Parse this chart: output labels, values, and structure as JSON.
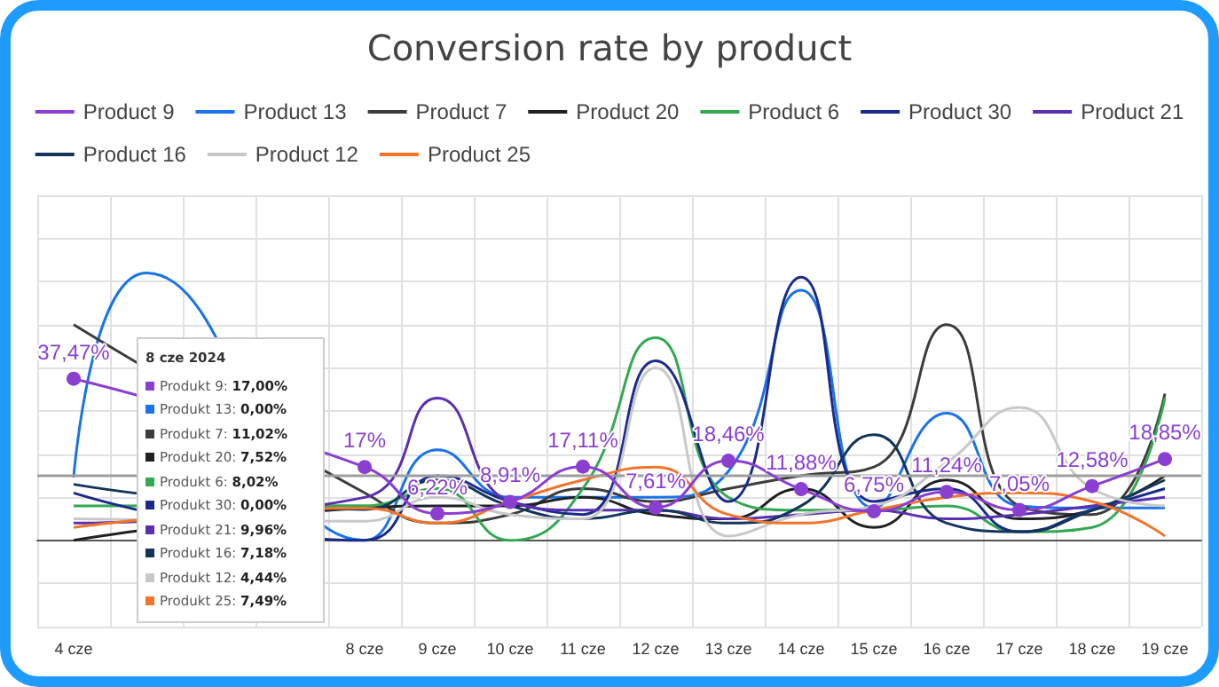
{
  "chart_data": {
    "type": "line",
    "title": "Conversion rate by product",
    "categories": [
      "4 cze",
      null,
      null,
      null,
      "8 cze",
      "9 cze",
      "10 cze",
      "11 cze",
      "12 cze",
      "13 cze",
      "14 cze",
      "15 cze",
      "16 cze",
      "17 cze",
      "18 cze",
      "19 cze"
    ],
    "series": [
      {
        "name": "Product 9",
        "color": "#8a3fd1",
        "marker": "circle",
        "values": [
          37.47,
          null,
          null,
          null,
          17,
          6.22,
          8.91,
          17.11,
          7.61,
          18.46,
          11.88,
          6.75,
          11.24,
          7.05,
          12.58,
          18.85
        ],
        "value_labels": [
          "37,47%",
          null,
          null,
          null,
          "17%",
          "6,22%",
          "8,91%",
          "17,11%",
          "7,61%",
          "18,46%",
          "11,88%",
          "6,75%",
          "11,24%",
          "7,05%",
          "12,58%",
          "18,85%"
        ]
      },
      {
        "name": "Product 13",
        "color": "#1a73e8",
        "values": [
          14.6,
          62,
          null,
          null,
          0,
          21,
          10,
          10,
          10,
          16,
          58,
          7.5,
          29.5,
          8,
          7.5,
          7.5
        ]
      },
      {
        "name": "Product 7",
        "color": "#3c3c3c",
        "values": [
          50,
          null,
          null,
          null,
          11.02,
          4,
          6,
          12,
          9,
          12,
          15,
          17,
          50,
          8,
          6,
          34
        ]
      },
      {
        "name": "Product 20",
        "color": "#202124",
        "values": [
          0,
          null,
          null,
          null,
          7.52,
          8,
          8,
          10,
          6,
          5,
          12,
          3,
          14,
          5,
          7,
          15
        ]
      },
      {
        "name": "Product 6",
        "color": "#34a853",
        "values": [
          8,
          null,
          null,
          null,
          8.02,
          12,
          0,
          12,
          47,
          10,
          7,
          7,
          8,
          2,
          3,
          33
        ]
      },
      {
        "name": "Product 30",
        "color": "#1a2a8a",
        "values": [
          11,
          null,
          null,
          null,
          0,
          15,
          9,
          6,
          41.6,
          9,
          61,
          9,
          12,
          2,
          7,
          12
        ]
      },
      {
        "name": "Product 21",
        "color": "#5b2fb0",
        "values": [
          4,
          null,
          null,
          null,
          9.96,
          33,
          9,
          7,
          7,
          5,
          6,
          7,
          5,
          6,
          8,
          10
        ]
      },
      {
        "name": "Product 16",
        "color": "#12355b",
        "values": [
          13,
          null,
          null,
          null,
          7.18,
          14,
          8,
          5,
          7,
          4,
          8,
          24.5,
          4,
          2,
          7,
          14
        ]
      },
      {
        "name": "Product 12",
        "color": "#c8c8c8",
        "values": [
          5,
          null,
          null,
          null,
          4.44,
          10,
          6,
          5,
          40,
          1,
          6,
          8,
          18,
          30.8,
          12,
          8
        ]
      },
      {
        "name": "Product 25",
        "color": "#f0742a",
        "values": [
          3,
          null,
          null,
          null,
          7.49,
          4,
          9,
          14,
          17,
          6,
          4,
          7,
          10,
          11,
          9,
          1
        ]
      }
    ],
    "ylim": [
      -20,
      80
    ],
    "yticks": [
      {
        "value": -20,
        "label": null
      },
      {
        "value": -10,
        "label": null
      },
      {
        "value": 0,
        "label": null
      },
      {
        "value": 10,
        "label": null
      },
      {
        "value": 20,
        "label": null
      },
      {
        "value": 30,
        "label": null
      },
      {
        "value": 40,
        "label": null
      },
      {
        "value": 50,
        "label": null
      },
      {
        "value": 60,
        "label": null
      },
      {
        "value": 70,
        "label": null
      },
      {
        "value": 80,
        "label": null
      }
    ],
    "tick_labels": "x",
    "ref_lines": [
      {
        "axis": "y",
        "value": 15,
        "color": "#9e9e9e"
      }
    ],
    "grid": true,
    "legend": "top",
    "marker": "none",
    "line_style": "solid",
    "annotations": [
      "8 cze 2024",
      "Produkt 9: 17,00%",
      "Produkt 13: 0,00%",
      "Produkt 7: 11,02%",
      "Produkt 20: 7,52%",
      "Produkt 6: 8,02%",
      "Produkt 30: 0,00%",
      "Produkt 21: 9,96%",
      "Produkt 16: 7,18%",
      "Produkt 12: 4,44%",
      "Produkt 25: 7,49%"
    ]
  }
}
